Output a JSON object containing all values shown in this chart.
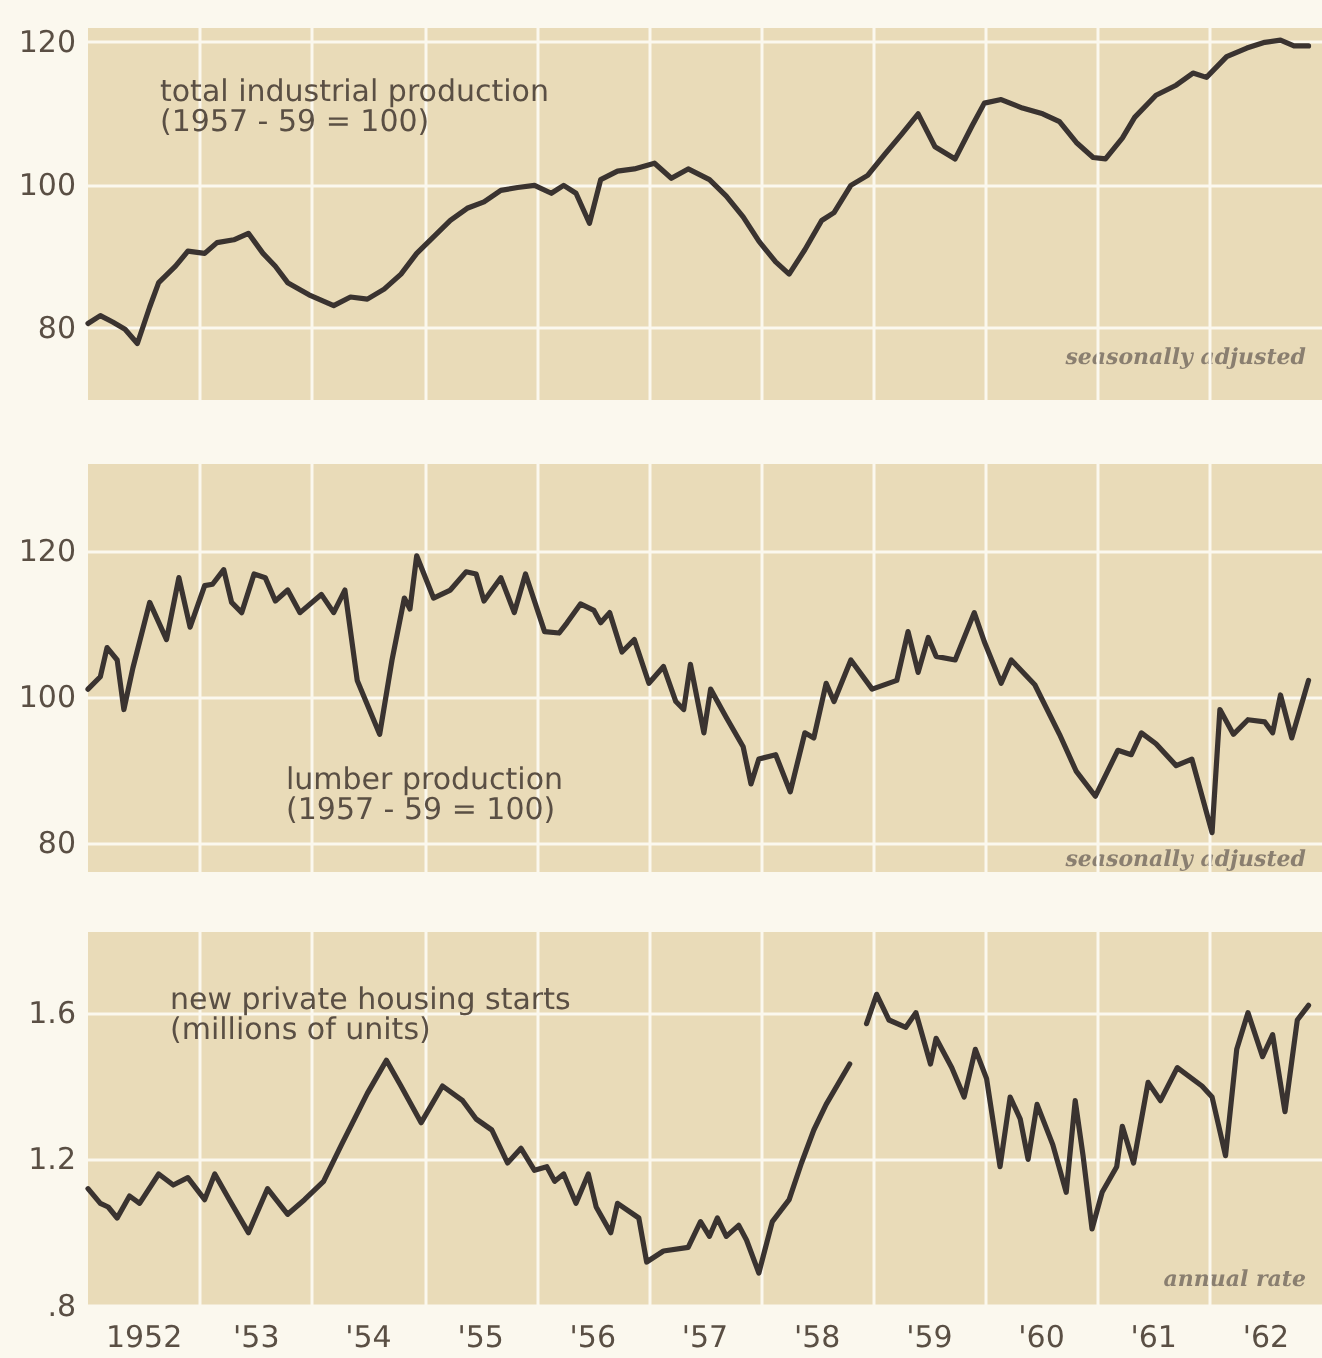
{
  "chart_data": [
    {
      "type": "line",
      "title": "total industrial production",
      "subtitle": "(1957 - 59 = 100)",
      "annotations": [
        "seasonally adjusted"
      ],
      "marker": "none",
      "grid": true,
      "tick_labels": "y",
      "xlim": [
        1951.5,
        1962.5
      ],
      "ylim": [
        70,
        122
      ],
      "yticks": [
        80,
        100,
        120
      ],
      "x": [
        1951.5,
        1951.61,
        1951.72,
        1951.83,
        1951.94,
        1952.05,
        1952.13,
        1952.28,
        1952.39,
        1952.54,
        1952.65,
        1952.8,
        1952.93,
        1953.06,
        1953.17,
        1953.28,
        1953.47,
        1953.69,
        1953.84,
        1953.99,
        1954.14,
        1954.29,
        1954.43,
        1954.58,
        1954.73,
        1954.88,
        1955.03,
        1955.18,
        1955.33,
        1955.48,
        1955.63,
        1955.74,
        1955.85,
        1955.97,
        1956.07,
        1956.22,
        1956.37,
        1956.55,
        1956.7,
        1956.85,
        1957.04,
        1957.19,
        1957.34,
        1957.48,
        1957.63,
        1957.75,
        1957.89,
        1958.04,
        1958.15,
        1958.3,
        1958.45,
        1958.6,
        1958.75,
        1958.9,
        1959.05,
        1959.23,
        1959.38,
        1959.49,
        1959.64,
        1959.83,
        1960.01,
        1960.16,
        1960.31,
        1960.46,
        1960.57,
        1960.72,
        1960.83,
        1961.02,
        1961.2,
        1961.35,
        1961.47,
        1961.65,
        1961.83,
        1961.99,
        1962.13,
        1962.25,
        1962.38
      ],
      "series": [
        {
          "color": "#3a3330",
          "values": [
            80.7,
            81.8,
            80.9,
            79.9,
            77.9,
            83,
            86.4,
            88.7,
            90.8,
            90.5,
            92,
            92.4,
            93.3,
            90.5,
            88.7,
            86.4,
            84.7,
            83.2,
            84.4,
            84.1,
            85.5,
            87.6,
            90.5,
            92.8,
            95.1,
            96.8,
            97.7,
            99.3,
            99.7,
            100,
            98.9,
            100,
            98.9,
            94.7,
            100.8,
            102,
            102.3,
            103.1,
            101,
            102.3,
            100.8,
            98.5,
            95.6,
            92.2,
            89.3,
            87.6,
            91,
            95.1,
            96.2,
            100,
            101.4,
            104.3,
            107.1,
            110,
            105.4,
            103.7,
            108.3,
            111.5,
            112,
            110.8,
            110,
            108.9,
            106,
            103.9,
            103.7,
            106.6,
            109.5,
            112.6,
            114,
            115.7,
            115.1,
            118,
            119.2,
            120,
            120.3,
            119.5,
            119.5
          ]
        }
      ]
    },
    {
      "type": "line",
      "title": "lumber production",
      "subtitle": "(1957 - 59 = 100)",
      "annotations": [
        "seasonally adjusted"
      ],
      "marker": "none",
      "grid": true,
      "tick_labels": "y",
      "xlim": [
        1951.5,
        1962.5
      ],
      "ylim": [
        76,
        132
      ],
      "yticks": [
        80,
        100,
        120
      ],
      "x": [
        1951.5,
        1951.61,
        1951.67,
        1951.76,
        1951.82,
        1951.9,
        1952.05,
        1952.2,
        1952.31,
        1952.41,
        1952.54,
        1952.61,
        1952.71,
        1952.78,
        1952.87,
        1952.98,
        1953.08,
        1953.17,
        1953.28,
        1953.39,
        1953.58,
        1953.69,
        1953.79,
        1953.9,
        1954.1,
        1954.21,
        1954.32,
        1954.37,
        1954.43,
        1954.58,
        1954.73,
        1954.87,
        1954.96,
        1955.03,
        1955.18,
        1955.3,
        1955.4,
        1955.57,
        1955.7,
        1955.77,
        1955.89,
        1956.01,
        1956.07,
        1956.15,
        1956.26,
        1956.37,
        1956.5,
        1956.63,
        1956.74,
        1956.81,
        1956.87,
        1956.99,
        1957.05,
        1957.19,
        1957.34,
        1957.41,
        1957.48,
        1957.63,
        1957.76,
        1957.89,
        1957.97,
        1958.08,
        1958.15,
        1958.3,
        1958.49,
        1958.71,
        1958.81,
        1958.9,
        1958.99,
        1959.06,
        1959.23,
        1959.4,
        1959.49,
        1959.64,
        1959.73,
        1959.94,
        1960.16,
        1960.31,
        1960.48,
        1960.68,
        1960.8,
        1960.89,
        1961.02,
        1961.2,
        1961.34,
        1961.52,
        1961.59,
        1961.71,
        1961.84,
        1961.99,
        1962.06,
        1962.13,
        1962.23,
        1962.38
      ],
      "series": [
        {
          "color": "#3a3330",
          "values": [
            101.1,
            102.8,
            106.8,
            105.1,
            98.3,
            104,
            113,
            107.9,
            116.4,
            109.6,
            115.3,
            115.5,
            117.5,
            113,
            111.6,
            116.9,
            116.4,
            113.2,
            114.7,
            111.6,
            114.1,
            111.6,
            114.7,
            102.3,
            94.9,
            105.1,
            113.6,
            112.1,
            119.4,
            113.6,
            114.7,
            117.2,
            116.9,
            113.2,
            116.4,
            111.6,
            116.9,
            109,
            108.8,
            110.2,
            112.8,
            111.9,
            110.2,
            111.6,
            106.2,
            107.9,
            101.9,
            104.2,
            99.4,
            98.3,
            104.5,
            95.1,
            101.1,
            97.2,
            93.2,
            88.1,
            91.5,
            92.1,
            87,
            95.1,
            94.4,
            101.9,
            99.4,
            105.1,
            101.1,
            102.3,
            109,
            103.4,
            108.2,
            105.6,
            105.1,
            111.6,
            107.6,
            101.9,
            105.1,
            101.7,
            94.9,
            89.8,
            86.4,
            92.7,
            92.1,
            95.1,
            93.6,
            90.6,
            91.5,
            81.4,
            98.3,
            94.9,
            96.9,
            96.6,
            95.1,
            100.3,
            94.4,
            102.3
          ]
        }
      ]
    },
    {
      "type": "line",
      "title": "new private housing starts",
      "subtitle": "(millions of units)",
      "annotations": [
        "annual rate"
      ],
      "marker": "none",
      "grid": true,
      "xlim": [
        1951.5,
        1962.5
      ],
      "xticks": [
        {
          "value": 1952,
          "label": "1952"
        },
        {
          "value": 1952.5,
          "label": null
        },
        {
          "value": 1953,
          "label": "'53"
        },
        {
          "value": 1953.5,
          "label": null
        },
        {
          "value": 1954,
          "label": "'54"
        },
        {
          "value": 1954.5,
          "label": null
        },
        {
          "value": 1955,
          "label": "'55"
        },
        {
          "value": 1955.5,
          "label": null
        },
        {
          "value": 1956,
          "label": "'56"
        },
        {
          "value": 1956.5,
          "label": null
        },
        {
          "value": 1957,
          "label": "'57"
        },
        {
          "value": 1957.5,
          "label": null
        },
        {
          "value": 1958,
          "label": "'58"
        },
        {
          "value": 1958.5,
          "label": null
        },
        {
          "value": 1959,
          "label": "'59"
        },
        {
          "value": 1959.5,
          "label": null
        },
        {
          "value": 1960,
          "label": "'60"
        },
        {
          "value": 1960.5,
          "label": null
        },
        {
          "value": 1961,
          "label": "'61"
        },
        {
          "value": 1961.5,
          "label": null
        },
        {
          "value": 1962,
          "label": "'62"
        }
      ],
      "ylim": [
        0.8,
        1.82
      ],
      "yticks": [
        {
          "value": 0.8,
          "label": ".8"
        },
        {
          "value": 1.2,
          "label": "1.2"
        },
        {
          "value": 1.6,
          "label": "1.6"
        }
      ],
      "x": [
        1951.5,
        1951.61,
        1951.68,
        1951.76,
        1951.87,
        1951.96,
        1952.13,
        1952.26,
        1952.39,
        1952.54,
        1952.63,
        1952.76,
        1952.93,
        1953.1,
        1953.28,
        1953.43,
        1953.6,
        1953.76,
        1953.99,
        1954.16,
        1954.29,
        1954.47,
        1954.66,
        1954.84,
        1954.96,
        1955.1,
        1955.24,
        1955.36,
        1955.48,
        1955.59,
        1955.66,
        1955.74,
        1955.85,
        1955.96,
        1956.03,
        1956.16,
        1956.22,
        1956.41,
        1956.48,
        1956.63,
        1956.85,
        1956.96,
        1957.04,
        1957.11,
        1957.19,
        1957.3,
        1957.37,
        1957.48,
        1957.6,
        1957.75,
        1957.86,
        1957.97,
        1958.08,
        1958.29,
        1958.36,
        1958.44,
        1958.53,
        1958.64,
        1958.79,
        1958.88,
        1959.01,
        1959.06,
        1959.2,
        1959.31,
        1959.41,
        1959.51,
        1959.63,
        1959.72,
        1959.81,
        1959.88,
        1959.96,
        1960.1,
        1960.22,
        1960.3,
        1960.37,
        1960.45,
        1960.54,
        1960.67,
        1960.72,
        1960.82,
        1960.95,
        1961.06,
        1961.21,
        1961.43,
        1961.52,
        1961.64,
        1961.74,
        1961.84,
        1961.97,
        1962.06,
        1962.17,
        1962.28,
        1962.38
      ],
      "series": [
        {
          "color": "#3a3330",
          "values": [
            1.12,
            1.08,
            1.07,
            1.04,
            1.1,
            1.08,
            1.16,
            1.13,
            1.15,
            1.09,
            1.16,
            1.09,
            1.0,
            1.12,
            1.05,
            1.09,
            1.14,
            1.24,
            1.38,
            1.47,
            1.4,
            1.3,
            1.4,
            1.36,
            1.31,
            1.28,
            1.19,
            1.23,
            1.17,
            1.18,
            1.14,
            1.16,
            1.08,
            1.16,
            1.07,
            1.0,
            1.08,
            1.04,
            0.92,
            0.95,
            0.96,
            1.03,
            0.99,
            1.04,
            0.99,
            1.02,
            0.98,
            0.89,
            1.03,
            1.09,
            1.19,
            1.28,
            1.35,
            1.46,
            null,
            1.57,
            1.65,
            1.58,
            1.56,
            1.6,
            1.46,
            1.53,
            1.45,
            1.37,
            1.5,
            1.42,
            1.18,
            1.37,
            1.31,
            1.2,
            1.35,
            1.24,
            1.11,
            1.36,
            1.21,
            1.01,
            1.11,
            1.18,
            1.29,
            1.19,
            1.41,
            1.36,
            1.45,
            1.4,
            1.37,
            1.21,
            1.5,
            1.6,
            1.48,
            1.54,
            1.33,
            1.58,
            1.62
          ]
        }
      ]
    }
  ]
}
